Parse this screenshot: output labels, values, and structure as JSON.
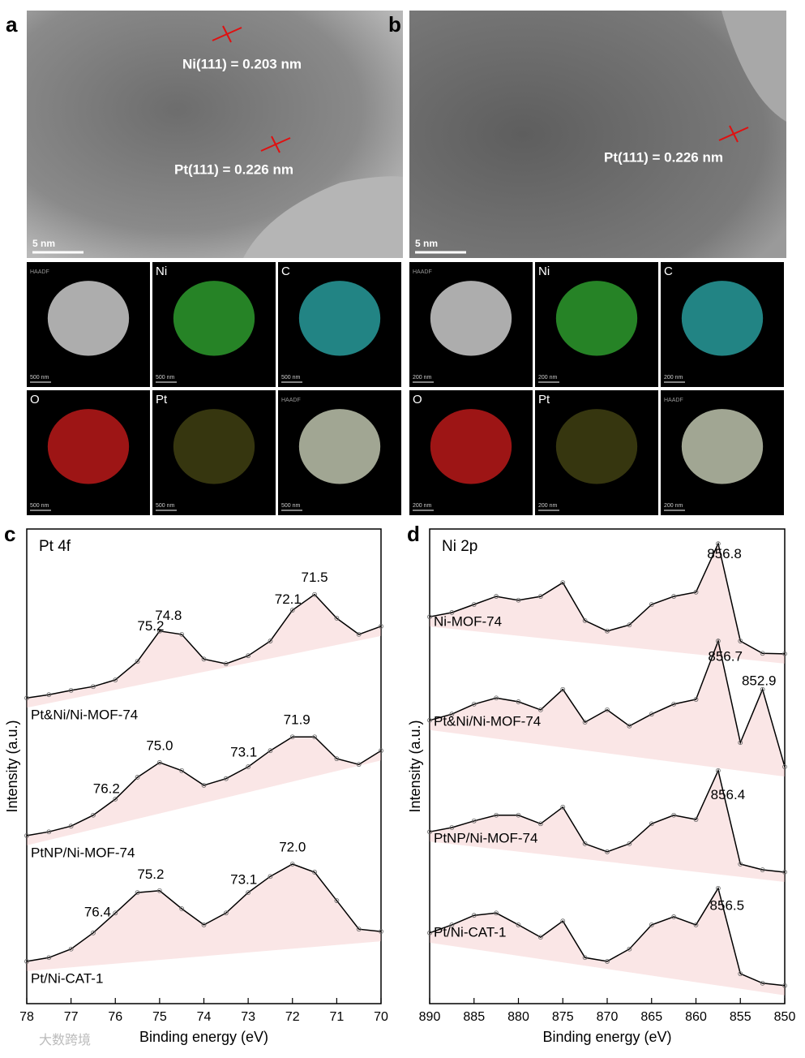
{
  "panel_a": {
    "letter": "a",
    "lattice": [
      "Ni(111) = 0.203 nm",
      "Pt(111) = 0.226 nm"
    ],
    "scale_bar": "5 nm",
    "maps": [
      {
        "label": "HAADF",
        "scale": "500 nm"
      },
      {
        "label": "Ni",
        "scale": "500 nm"
      },
      {
        "label": "C",
        "scale": "500 nm"
      },
      {
        "label": "O",
        "scale": "500 nm"
      },
      {
        "label": "Pt",
        "scale": "500 nm"
      },
      {
        "label": "HAADF",
        "scale": "500 nm"
      }
    ]
  },
  "panel_b": {
    "letter": "b",
    "lattice": [
      "Pt(111) = 0.226 nm"
    ],
    "scale_bar": "5 nm",
    "maps": [
      {
        "label": "HAADF",
        "scale": "200 nm"
      },
      {
        "label": "Ni",
        "scale": "200 nm"
      },
      {
        "label": "C",
        "scale": "200 nm"
      },
      {
        "label": "O",
        "scale": "200 nm"
      },
      {
        "label": "Pt",
        "scale": "200 nm"
      },
      {
        "label": "HAADF",
        "scale": "200 nm"
      }
    ]
  },
  "chart_data": [
    {
      "type": "line",
      "letter": "c",
      "title": "Pt 4f",
      "x_label": "Binding energy (eV)",
      "y_label": "Intensity (a.u.)",
      "x": [
        78,
        77.5,
        77,
        76.5,
        76,
        75.5,
        75,
        74.5,
        74,
        73.5,
        73,
        72.5,
        72,
        71.5,
        71,
        70.5,
        70
      ],
      "xlim": [
        78,
        70
      ],
      "xticks": [
        78,
        77,
        76,
        75,
        74,
        73,
        72,
        71,
        70
      ],
      "ylim": [
        0,
        100
      ],
      "series": [
        {
          "name": "Pt&Ni/Ni-MOF-74",
          "color": "#000000",
          "values": [
            64.4,
            65.1,
            66.0,
            66.8,
            68.2,
            72.1,
            78.5,
            77.8,
            72.6,
            71.6,
            73.3,
            76.4,
            82.9,
            86.2,
            81.2,
            77.8,
            79.5
          ],
          "peaks": [
            71.5,
            72.1,
            74.8,
            75.2
          ]
        },
        {
          "name": "PtNP/Ni-MOF-74",
          "color": "#000000",
          "values": [
            35.4,
            36.2,
            37.4,
            39.7,
            43.1,
            47.7,
            50.8,
            49.1,
            46.0,
            47.4,
            49.9,
            53.3,
            56.2,
            56.2,
            51.6,
            50.4,
            53.3
          ],
          "peaks": [
            71.9,
            73.1,
            {
              "value": 75,
              "label": "75.0"
            },
            76.2
          ]
        },
        {
          "name": "Pt/Ni-CAT-1",
          "color": "#000000",
          "values": [
            8.9,
            9.7,
            11.5,
            14.9,
            19.1,
            23.4,
            23.8,
            20.0,
            16.6,
            19.1,
            23.4,
            26.8,
            29.4,
            27.7,
            21.7,
            15.7,
            15.2
          ],
          "peaks": [
            {
              "value": 72,
              "label": "72.0"
            },
            73.1,
            75.2,
            76.4
          ]
        }
      ]
    },
    {
      "type": "line",
      "letter": "d",
      "title": "Ni 2p",
      "x_label": "Binding energy (eV)",
      "y_label": "Intensity (a.u.)",
      "x": [
        890,
        887.5,
        885,
        882.5,
        880,
        877.5,
        875,
        872.5,
        870,
        867.5,
        865,
        862.5,
        860,
        857.5,
        855,
        852.5,
        850
      ],
      "xlim": [
        890,
        850
      ],
      "xticks": [
        890,
        885,
        880,
        875,
        870,
        865,
        860,
        855,
        850
      ],
      "ylim": [
        0,
        100
      ],
      "series": [
        {
          "name": "Ni-MOF-74",
          "color": "#000000",
          "values": [
            81.5,
            82.4,
            84.1,
            85.8,
            85.0,
            85.8,
            88.7,
            80.7,
            78.5,
            79.8,
            84.1,
            85.8,
            86.7,
            96.9,
            76.4,
            73.8,
            73.7
          ],
          "peaks": [
            856.8
          ]
        },
        {
          "name": "Pt&Ni/Ni-MOF-74",
          "color": "#000000",
          "values": [
            59.7,
            61.0,
            63.1,
            64.4,
            63.6,
            61.9,
            66.2,
            59.3,
            61.9,
            58.5,
            61.0,
            63.1,
            64.1,
            76.4,
            55.0,
            66.2,
            49.9
          ],
          "peaks": [
            856.7,
            852.9
          ]
        },
        {
          "name": "PtNP/Ni-MOF-74",
          "color": "#000000",
          "values": [
            36.2,
            37.1,
            38.5,
            39.7,
            39.7,
            37.9,
            41.4,
            33.7,
            32.0,
            33.7,
            37.9,
            39.7,
            38.8,
            49.1,
            29.4,
            28.2,
            27.7
          ],
          "peaks": [
            856.4
          ]
        },
        {
          "name": "Pt/Ni-CAT-1",
          "color": "#000000",
          "values": [
            14.9,
            16.6,
            18.6,
            19.1,
            16.6,
            14.0,
            17.4,
            9.7,
            8.9,
            11.5,
            16.6,
            18.3,
            16.6,
            24.3,
            6.3,
            4.3,
            3.8
          ],
          "peaks": [
            856.5
          ]
        }
      ]
    }
  ],
  "watermark": "大数跨境"
}
